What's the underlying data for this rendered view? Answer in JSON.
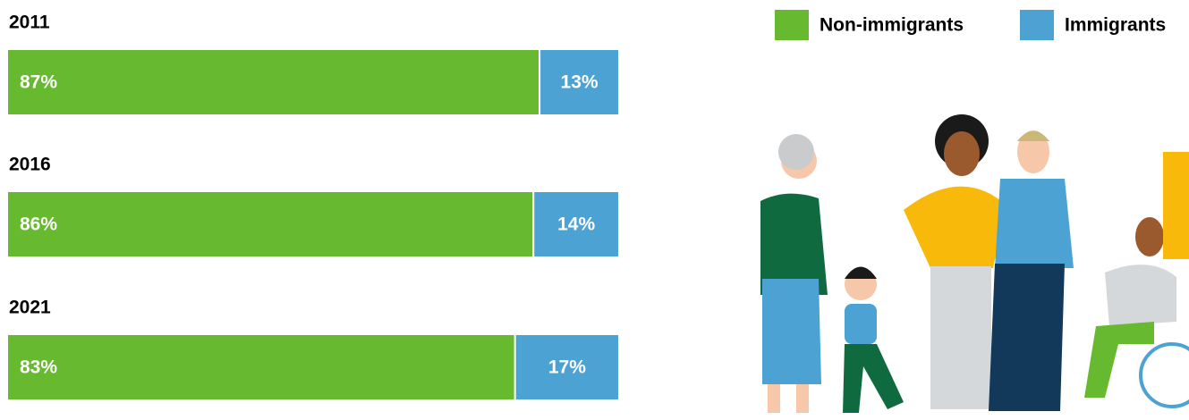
{
  "chart_data": {
    "type": "bar",
    "orientation": "horizontal",
    "stacked": true,
    "categories": [
      "2011",
      "2016",
      "2021"
    ],
    "xlim": [
      0,
      100
    ],
    "legend": "top-right",
    "series": [
      {
        "name": "Non-immigrants",
        "color": "#67b930",
        "values": [
          87,
          86,
          83
        ],
        "value_labels": [
          "87%",
          "86%",
          "83%"
        ]
      },
      {
        "name": "Immigrants",
        "color": "#4ca3d3",
        "values": [
          13,
          14,
          17
        ],
        "value_labels": [
          "13%",
          "14%",
          "17%"
        ]
      }
    ]
  }
}
